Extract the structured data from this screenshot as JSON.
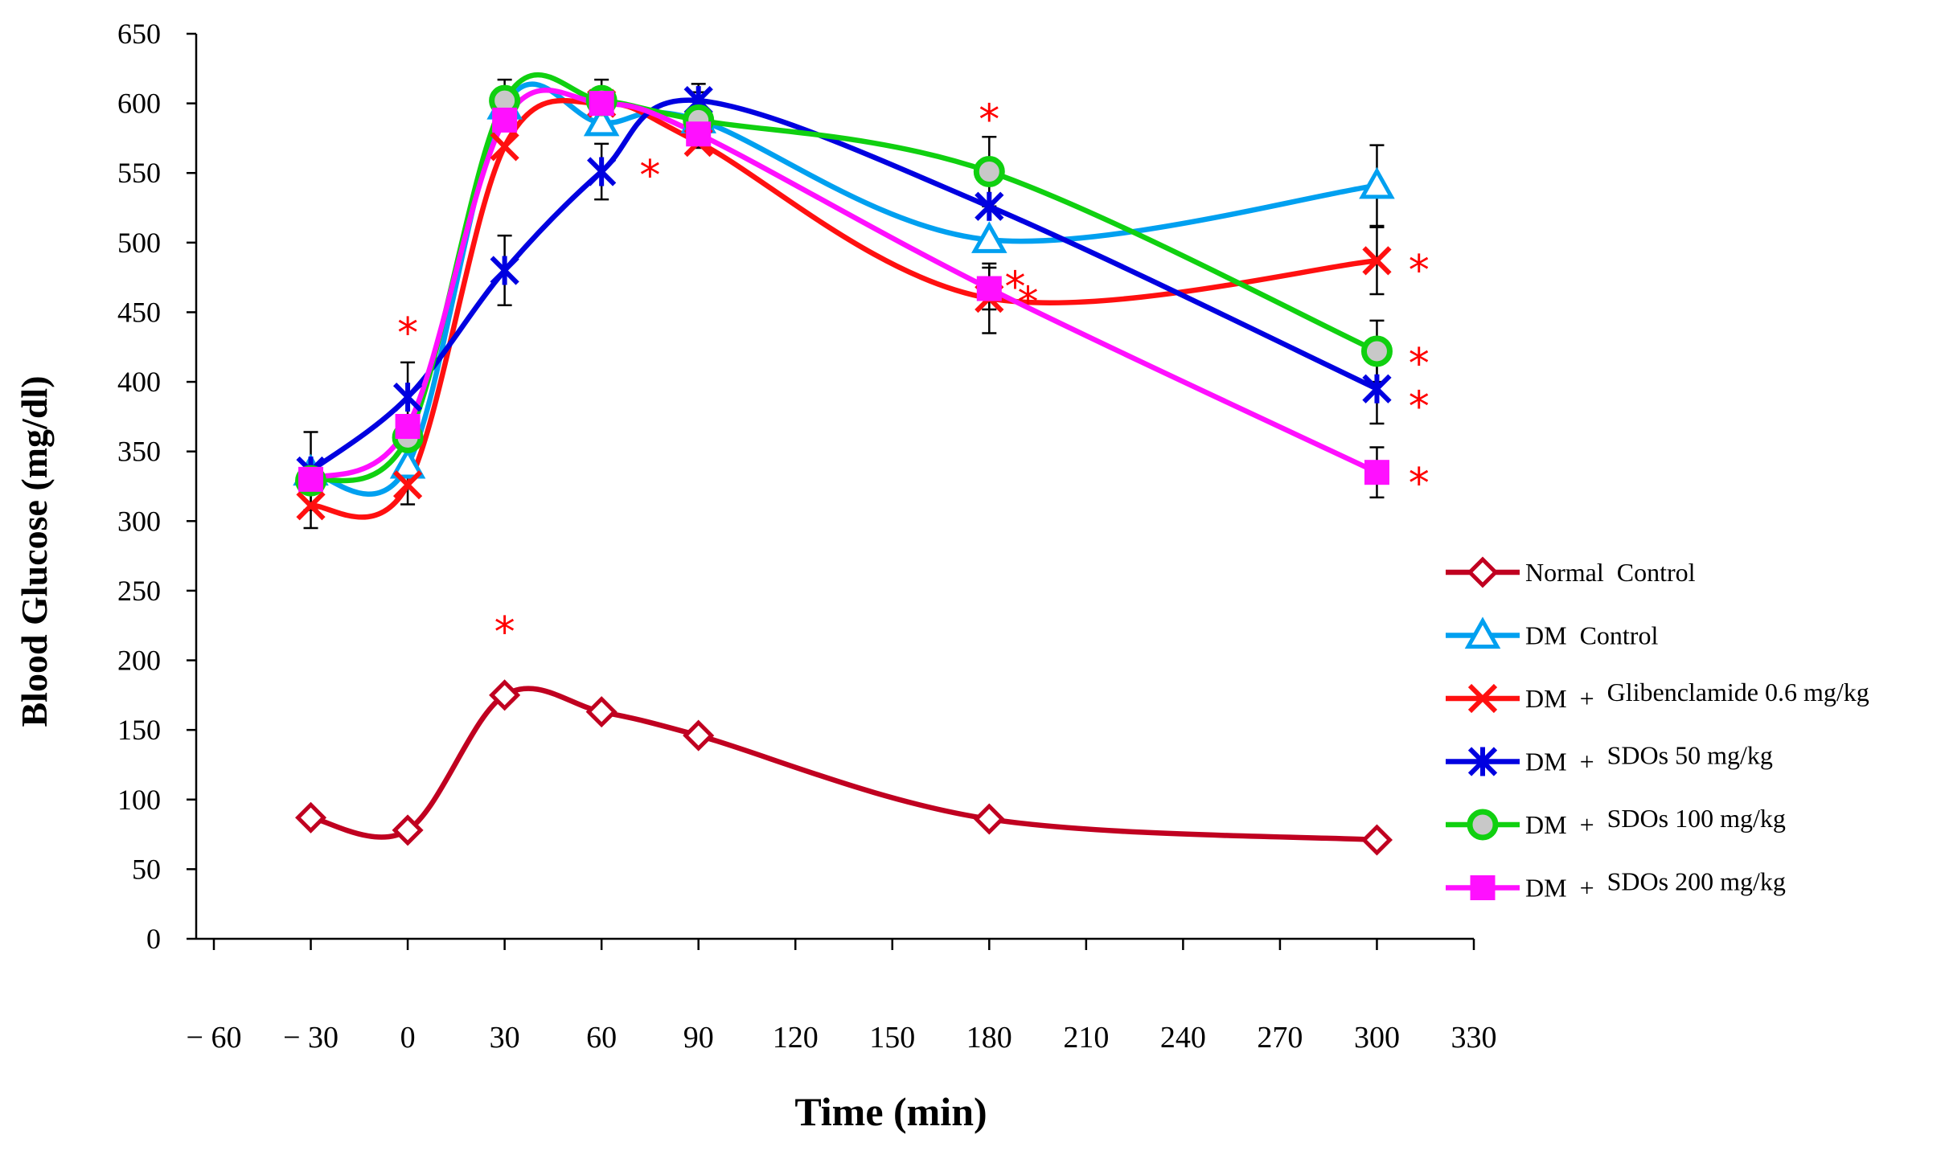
{
  "chart_data": {
    "type": "line",
    "title": "",
    "xlabel": "Time (min)",
    "ylabel": "Blood Glucose (mg/dl)",
    "xlim": [
      -60,
      330
    ],
    "ylim": [
      0,
      650
    ],
    "x_ticks": [
      -60,
      -30,
      0,
      30,
      60,
      90,
      120,
      150,
      180,
      210,
      240,
      270,
      300,
      330
    ],
    "x_tick_labels": [
      "− 60",
      "− 30",
      "0",
      "30",
      "60",
      "90",
      "120",
      "150",
      "180",
      "210",
      "240",
      "270",
      "300",
      "330"
    ],
    "y_ticks": [
      0,
      50,
      100,
      150,
      200,
      250,
      300,
      350,
      400,
      450,
      500,
      550,
      600,
      650
    ],
    "y_tick_labels": [
      "0",
      "50",
      "100",
      "150",
      "200",
      "250",
      "300",
      "350",
      "400",
      "450",
      "500",
      "550",
      "600",
      "650"
    ],
    "x": [
      -30,
      0,
      30,
      60,
      90,
      180,
      300
    ],
    "series": [
      {
        "name": "Normal  Control",
        "legend_prefix": "",
        "legend_suffix": "",
        "color": "#c00020",
        "marker": "diamond-open",
        "values": [
          87,
          78,
          175,
          163,
          146,
          86,
          71
        ],
        "errors": [
          0,
          0,
          0,
          0,
          0,
          0,
          0
        ]
      },
      {
        "name": "DM  Control",
        "legend_prefix": "",
        "legend_suffix": "",
        "color": "#00a0f0",
        "marker": "triangle-open",
        "values": [
          335,
          340,
          598,
          586,
          588,
          502,
          541
        ],
        "errors": [
          0,
          0,
          0,
          0,
          0,
          0,
          29
        ]
      },
      {
        "name": "DM  +  Glibenclamide 0.6 mg/kg",
        "legend_prefix": "DM  +  ",
        "legend_suffix": "Glibenclamide 0.6 mg/kg",
        "color": "#ff1010",
        "marker": "x",
        "values": [
          311,
          326,
          569,
          600,
          572,
          460,
          487
        ],
        "errors": [
          16,
          14,
          0,
          0,
          0,
          25,
          24
        ]
      },
      {
        "name": "DM  +  SDOs 50 mg/kg",
        "legend_prefix": "DM  +  ",
        "legend_suffix": "SDOs 50 mg/kg",
        "color": "#0000e0",
        "marker": "asterisk",
        "values": [
          336,
          389,
          480,
          551,
          602,
          526,
          395
        ],
        "errors": [
          28,
          25,
          25,
          20,
          12,
          0,
          25
        ]
      },
      {
        "name": "DM  +  SDOs 100 mg/kg",
        "legend_prefix": "DM  +  ",
        "legend_suffix": "SDOs 100 mg/kg",
        "color": "#10d010",
        "marker": "circle-filled",
        "values": [
          329,
          360,
          602,
          602,
          588,
          551,
          422
        ],
        "errors": [
          0,
          0,
          15,
          15,
          20,
          25,
          22
        ]
      },
      {
        "name": "DM  +  SDOs 200 mg/kg",
        "legend_prefix": "DM  +  ",
        "legend_suffix": "SDOs 200 mg/kg",
        "color": "#ff10ff",
        "marker": "square",
        "values": [
          330,
          368,
          588,
          600,
          578,
          467,
          335
        ],
        "errors": [
          0,
          0,
          0,
          0,
          0,
          15,
          18
        ]
      }
    ],
    "annotations": [
      {
        "text": "*",
        "x": 0,
        "y": 440
      },
      {
        "text": "*",
        "x": 30,
        "y": 225
      },
      {
        "text": "*",
        "x": 75,
        "y": 553
      },
      {
        "text": "*",
        "x": 180,
        "y": 593
      },
      {
        "text": "*",
        "x": 188,
        "y": 473
      },
      {
        "text": "*",
        "x": 192,
        "y": 462
      },
      {
        "text": "*",
        "x": 313,
        "y": 485
      },
      {
        "text": "*",
        "x": 313,
        "y": 418
      },
      {
        "text": "*",
        "x": 313,
        "y": 387
      },
      {
        "text": "*",
        "x": 313,
        "y": 332
      }
    ]
  }
}
